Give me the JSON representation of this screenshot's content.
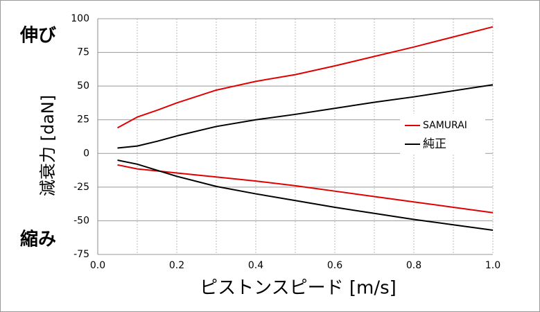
{
  "chart_data": {
    "type": "line",
    "y_label": "減衰力 [daN]",
    "x_label": "ピストンスピード [m/s]",
    "annotations": [
      "伸び",
      "縮み"
    ],
    "x": [
      0.05,
      0.1,
      0.15,
      0.2,
      0.3,
      0.4,
      0.5,
      0.6,
      0.7,
      0.8,
      0.9,
      1.0
    ],
    "series": [
      {
        "name": "SAMURAI",
        "color": "#e00000",
        "values": [
          19,
          27,
          32,
          37.5,
          47,
          53.5,
          58.5,
          65,
          72,
          79,
          86.5,
          94
        ],
        "values_compression": [
          -8.5,
          -11.5,
          -13,
          -14.5,
          -17.5,
          -20.5,
          -24,
          -28,
          -32,
          -36,
          -40,
          -44
        ]
      },
      {
        "name": "純正",
        "color": "#000000",
        "values": [
          4,
          5.5,
          9,
          13,
          20,
          25,
          29,
          33.5,
          38,
          42,
          46.5,
          51
        ],
        "values_compression": [
          -5,
          -8,
          -12.5,
          -17,
          -24.5,
          -30,
          -35,
          -40,
          -44.5,
          -49,
          -53,
          -57
        ]
      }
    ],
    "xlim": [
      0,
      1.0
    ],
    "ylim": [
      -75,
      100
    ],
    "xticks": [
      {
        "value": 0,
        "label": "0.0"
      },
      {
        "value": 0.2,
        "label": "0.2"
      },
      {
        "value": 0.4,
        "label": "0.4"
      },
      {
        "value": 0.6,
        "label": "0.6"
      },
      {
        "value": 0.8,
        "label": "0.8"
      },
      {
        "value": 1.0,
        "label": "1.0"
      }
    ],
    "x_minor_ticks": [
      0.1,
      0.3,
      0.5,
      0.7,
      0.9
    ],
    "yticks": [
      100,
      75,
      50,
      25,
      0,
      -25,
      -50,
      -75
    ],
    "grid": true
  }
}
